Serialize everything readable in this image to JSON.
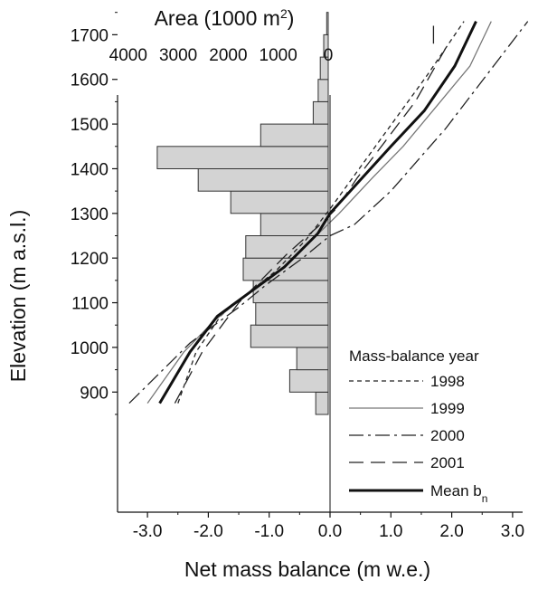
{
  "chart_data": {
    "type": "line",
    "x_top_label": "Area (1000 m",
    "x_top_label_sup": "2",
    "x_top_label_end": ")",
    "x_bottom_label": "Net mass balance (m w.e.)",
    "y_label": "Elevation (m a.s.l.)",
    "x_top_ticks": [
      "4000",
      "3000",
      "2000",
      "1000",
      "0"
    ],
    "x_top_range": [
      4000,
      0
    ],
    "x_bottom_ticks": [
      "-3.0",
      "-2.0",
      "-1.0",
      "0.0",
      "1.0",
      "2.0",
      "3.0"
    ],
    "x_bottom_range": [
      -3.5,
      3.5
    ],
    "y_ticks": [
      "900",
      "1000",
      "1100",
      "1200",
      "1300",
      "1400",
      "1500",
      "1600",
      "1700"
    ],
    "y_range": [
      850,
      1750
    ],
    "hypsometry": {
      "bin_bottoms": [
        850,
        900,
        950,
        1000,
        1050,
        1100,
        1150,
        1200,
        1250,
        1300,
        1350,
        1400,
        1450,
        1500,
        1550,
        1600,
        1650,
        1700
      ],
      "bin_height": 50,
      "area": [
        250,
        770,
        630,
        1550,
        1450,
        1500,
        1700,
        1650,
        1350,
        1950,
        2600,
        3420,
        1350,
        300,
        200,
        160,
        90,
        30
      ],
      "color": "#d3d3d3"
    },
    "legend_title": "Mass-balance year",
    "series": [
      {
        "name": "1998",
        "style": "short-dash",
        "width": 1.3,
        "color": "#222222",
        "x": [
          -2.5,
          -2.2,
          -1.8,
          -1.55,
          -0.9,
          -0.4,
          0.0,
          0.8,
          1.6,
          2.2
        ],
        "y": [
          875,
          990,
          1070,
          1100,
          1170,
          1240,
          1310,
          1460,
          1610,
          1730
        ]
      },
      {
        "name": "1999",
        "style": "solid",
        "width": 1.3,
        "color": "#777777",
        "x": [
          -3.0,
          -2.4,
          -1.9,
          -1.35,
          -0.75,
          -0.3,
          0.15,
          0.7,
          1.2,
          1.75,
          2.3,
          2.65
        ],
        "y": [
          875,
          990,
          1060,
          1120,
          1180,
          1240,
          1300,
          1380,
          1450,
          1540,
          1630,
          1730
        ]
      },
      {
        "name": "2000",
        "style": "dash-dot",
        "width": 1.3,
        "color": "#222222",
        "x": [
          -3.3,
          -2.3,
          -1.5,
          -1.05,
          -0.45,
          0.0,
          0.4,
          1.0,
          1.9,
          2.8,
          3.25
        ],
        "y": [
          875,
          1010,
          1090,
          1140,
          1200,
          1250,
          1275,
          1350,
          1490,
          1650,
          1730
        ]
      },
      {
        "name": "2001",
        "style": "long-dash",
        "width": 1.3,
        "color": "#222222",
        "x": [
          -2.55,
          -2.1,
          -1.5,
          -0.7,
          -0.2,
          0.1,
          0.45,
          0.9,
          1.4,
          1.9
        ],
        "y": [
          875,
          990,
          1100,
          1210,
          1270,
          1310,
          1380,
          1460,
          1550,
          1670
        ]
      },
      {
        "name": "Mean b",
        "name_sub": "n",
        "style": "solid",
        "width": 3,
        "color": "#111111",
        "x": [
          -2.8,
          -2.3,
          -1.85,
          -1.45,
          -0.75,
          -0.2,
          0.0,
          0.5,
          1.0,
          1.55,
          2.05,
          2.4
        ],
        "y": [
          875,
          990,
          1070,
          1110,
          1180,
          1255,
          1300,
          1375,
          1450,
          1530,
          1630,
          1730
        ]
      }
    ],
    "series_2001_extra_segment": {
      "x": [
        1.7,
        1.7
      ],
      "y": [
        1680,
        1720
      ]
    }
  }
}
